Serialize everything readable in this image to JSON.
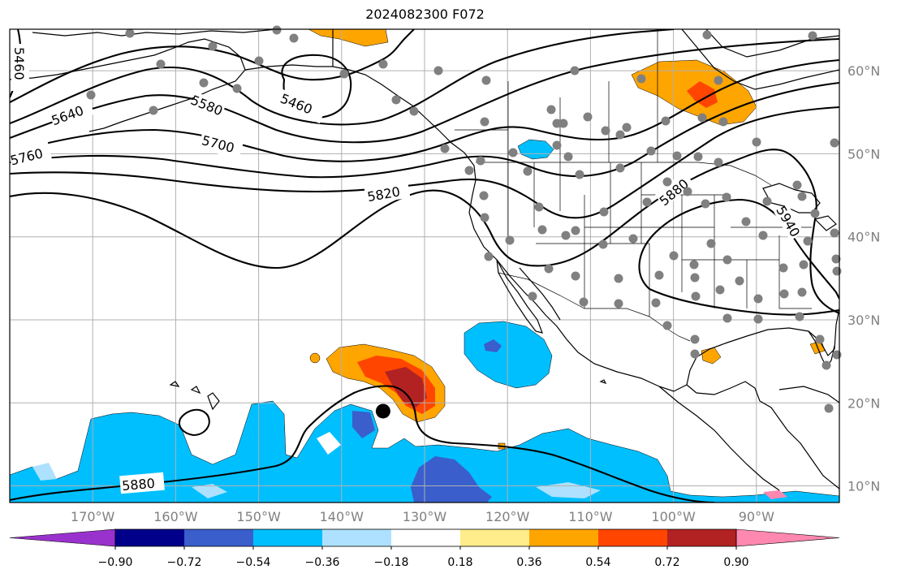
{
  "title": "2024082300 F072",
  "map": {
    "lon_range": [
      -180,
      -80
    ],
    "lat_range": [
      8,
      65
    ],
    "lon_ticks": [
      {
        "value": -170,
        "label": "170°W"
      },
      {
        "value": -160,
        "label": "160°W"
      },
      {
        "value": -150,
        "label": "150°W"
      },
      {
        "value": -140,
        "label": "140°W"
      },
      {
        "value": -130,
        "label": "130°W"
      },
      {
        "value": -120,
        "label": "120°W"
      },
      {
        "value": -110,
        "label": "110°W"
      },
      {
        "value": -100,
        "label": "100°W"
      },
      {
        "value": -90,
        "label": "90°W"
      }
    ],
    "lat_ticks": [
      {
        "value": 10,
        "label": "10°N"
      },
      {
        "value": 20,
        "label": "20°N"
      },
      {
        "value": 30,
        "label": "30°N"
      },
      {
        "value": 40,
        "label": "40°N"
      },
      {
        "value": 50,
        "label": "50°N"
      },
      {
        "value": 60,
        "label": "60°N"
      }
    ],
    "grid": true,
    "contour_labels": [
      "5460",
      "5460",
      "5580",
      "5640",
      "5700",
      "5760",
      "5820",
      "5880",
      "5940",
      "5880"
    ],
    "storm_center": {
      "lon": -135,
      "lat": 19
    }
  },
  "colorbar": {
    "colors": [
      "#9932CC",
      "#00008B",
      "#3A5ECC",
      "#00BFFF",
      "#AEE1FF",
      "#FFFFFF",
      "#FFEC8B",
      "#FFA500",
      "#FF4500",
      "#B22222",
      "#FF88B0"
    ],
    "tick_labels": [
      "−0.90",
      "−0.72",
      "−0.54",
      "−0.36",
      "−0.18",
      "0.18",
      "0.36",
      "0.54",
      "0.72",
      "0.90"
    ],
    "extend": "both"
  },
  "colors": {
    "contour": "#000000",
    "station_dot": "#808080",
    "grid": "#b0b0b0"
  }
}
